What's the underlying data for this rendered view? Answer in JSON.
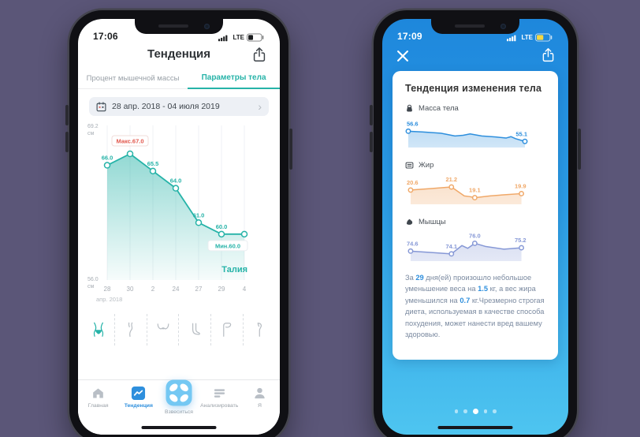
{
  "page": {
    "background": "#5b5678"
  },
  "colors": {
    "teal": "#26b3a8",
    "red": "#e2574c",
    "blue": "#2e8fdd",
    "orange": "#f0a868",
    "purple_line": "#8698d6"
  },
  "left_phone": {
    "status": {
      "time": "17:06",
      "network": "LTE"
    },
    "title": "Тенденция",
    "tabs": [
      {
        "label": "Процент мышечной массы"
      },
      {
        "label": "Параметры тела"
      }
    ],
    "date_range": "28 апр. 2018 - 04 июля 2019",
    "body_parts": [
      "waist",
      "hip",
      "bust",
      "foot",
      "thigh",
      "calf"
    ],
    "tabbar": [
      {
        "label": "Главная"
      },
      {
        "label": "Тенденция"
      },
      {
        "label": "Взвеситься"
      },
      {
        "label": "Анализировать"
      },
      {
        "label": "Я"
      }
    ]
  },
  "right_phone": {
    "status": {
      "time": "17:09",
      "network": "LTE"
    },
    "card": {
      "title": "Тенденция изменения тела",
      "sections": [
        {
          "label": "Масса тела"
        },
        {
          "label": "Жир"
        },
        {
          "label": "Мышцы"
        }
      ],
      "summary": [
        {
          "text": "За "
        },
        {
          "text": "29",
          "highlight": true
        },
        {
          "text": " дня(ей) произошло небольшое уменьшение веса на "
        },
        {
          "text": "1.5",
          "highlight": true
        },
        {
          "text": " кг, а вес жира уменьшился на "
        },
        {
          "text": "0.7",
          "highlight": true
        },
        {
          "text": " кг.Чрезмерно строгая диета, используемая в качестве способа похудения, может нанести вред вашему здоровью."
        }
      ]
    },
    "pagination": {
      "count": 5,
      "active": 2
    }
  },
  "chart_data": [
    {
      "id": "waist",
      "type": "area",
      "series_label": "Талия",
      "unit": "см",
      "ylim": [
        56.0,
        69.2
      ],
      "y_axis": {
        "top": "69.2",
        "bottom": "56.0",
        "unit": "см"
      },
      "x_tick_labels": [
        "28",
        "30",
        "2",
        "24",
        "27",
        "29",
        "4"
      ],
      "x_note": "апр. 2018",
      "values": [
        66.0,
        67.0,
        65.5,
        64.0,
        61.0,
        60.0,
        60.0
      ],
      "point_labels": {
        "0": "66.0",
        "2": "65.5",
        "3": "64.0",
        "4": "61.0",
        "5": "60.0"
      },
      "max_annotation": {
        "index": 1,
        "text": "Макс.67.0"
      },
      "min_annotation": {
        "index": 6,
        "text": "Мин.60.0"
      },
      "line_color": "#26b3a8"
    },
    {
      "id": "weight",
      "type": "area",
      "label": "Масса тела",
      "ylim": [
        54.2,
        57.8
      ],
      "x": [
        0,
        0.12,
        0.28,
        0.4,
        0.47,
        0.53,
        0.63,
        0.75,
        0.84,
        0.88,
        0.92,
        1
      ],
      "values": [
        56.6,
        56.5,
        56.3,
        55.9,
        56.0,
        56.2,
        55.9,
        55.75,
        55.6,
        55.8,
        55.5,
        55.1
      ],
      "markers": [
        0,
        11
      ],
      "point_labels": {
        "0": "56.6",
        "11": "55.1"
      },
      "line_color": "#2e8fdd"
    },
    {
      "id": "fat",
      "type": "area",
      "label": "Жир",
      "ylim": [
        17.8,
        22.6
      ],
      "x": [
        0.02,
        0.2,
        0.37,
        0.48,
        0.53,
        0.57,
        0.7,
        0.84,
        0.97
      ],
      "values": [
        20.6,
        20.9,
        21.2,
        19.45,
        19.3,
        19.1,
        19.45,
        19.7,
        19.9
      ],
      "markers": [
        0,
        2,
        5,
        8
      ],
      "point_labels": {
        "0": "20.6",
        "2": "21.2",
        "5": "19.1",
        "8": "19.9"
      },
      "line_color": "#f0a868"
    },
    {
      "id": "muscle",
      "type": "area",
      "label": "Мышцы",
      "ylim": [
        72.8,
        77.2
      ],
      "x": [
        0.02,
        0.2,
        0.37,
        0.46,
        0.51,
        0.57,
        0.66,
        0.82,
        0.97
      ],
      "values": [
        74.6,
        74.35,
        74.1,
        75.6,
        75.1,
        76.0,
        75.45,
        74.95,
        75.2
      ],
      "markers": [
        0,
        2,
        5,
        8
      ],
      "point_labels": {
        "0": "74.6",
        "2": "74.1",
        "5": "76.0",
        "8": "75.2"
      },
      "line_color": "#8698d6"
    }
  ]
}
